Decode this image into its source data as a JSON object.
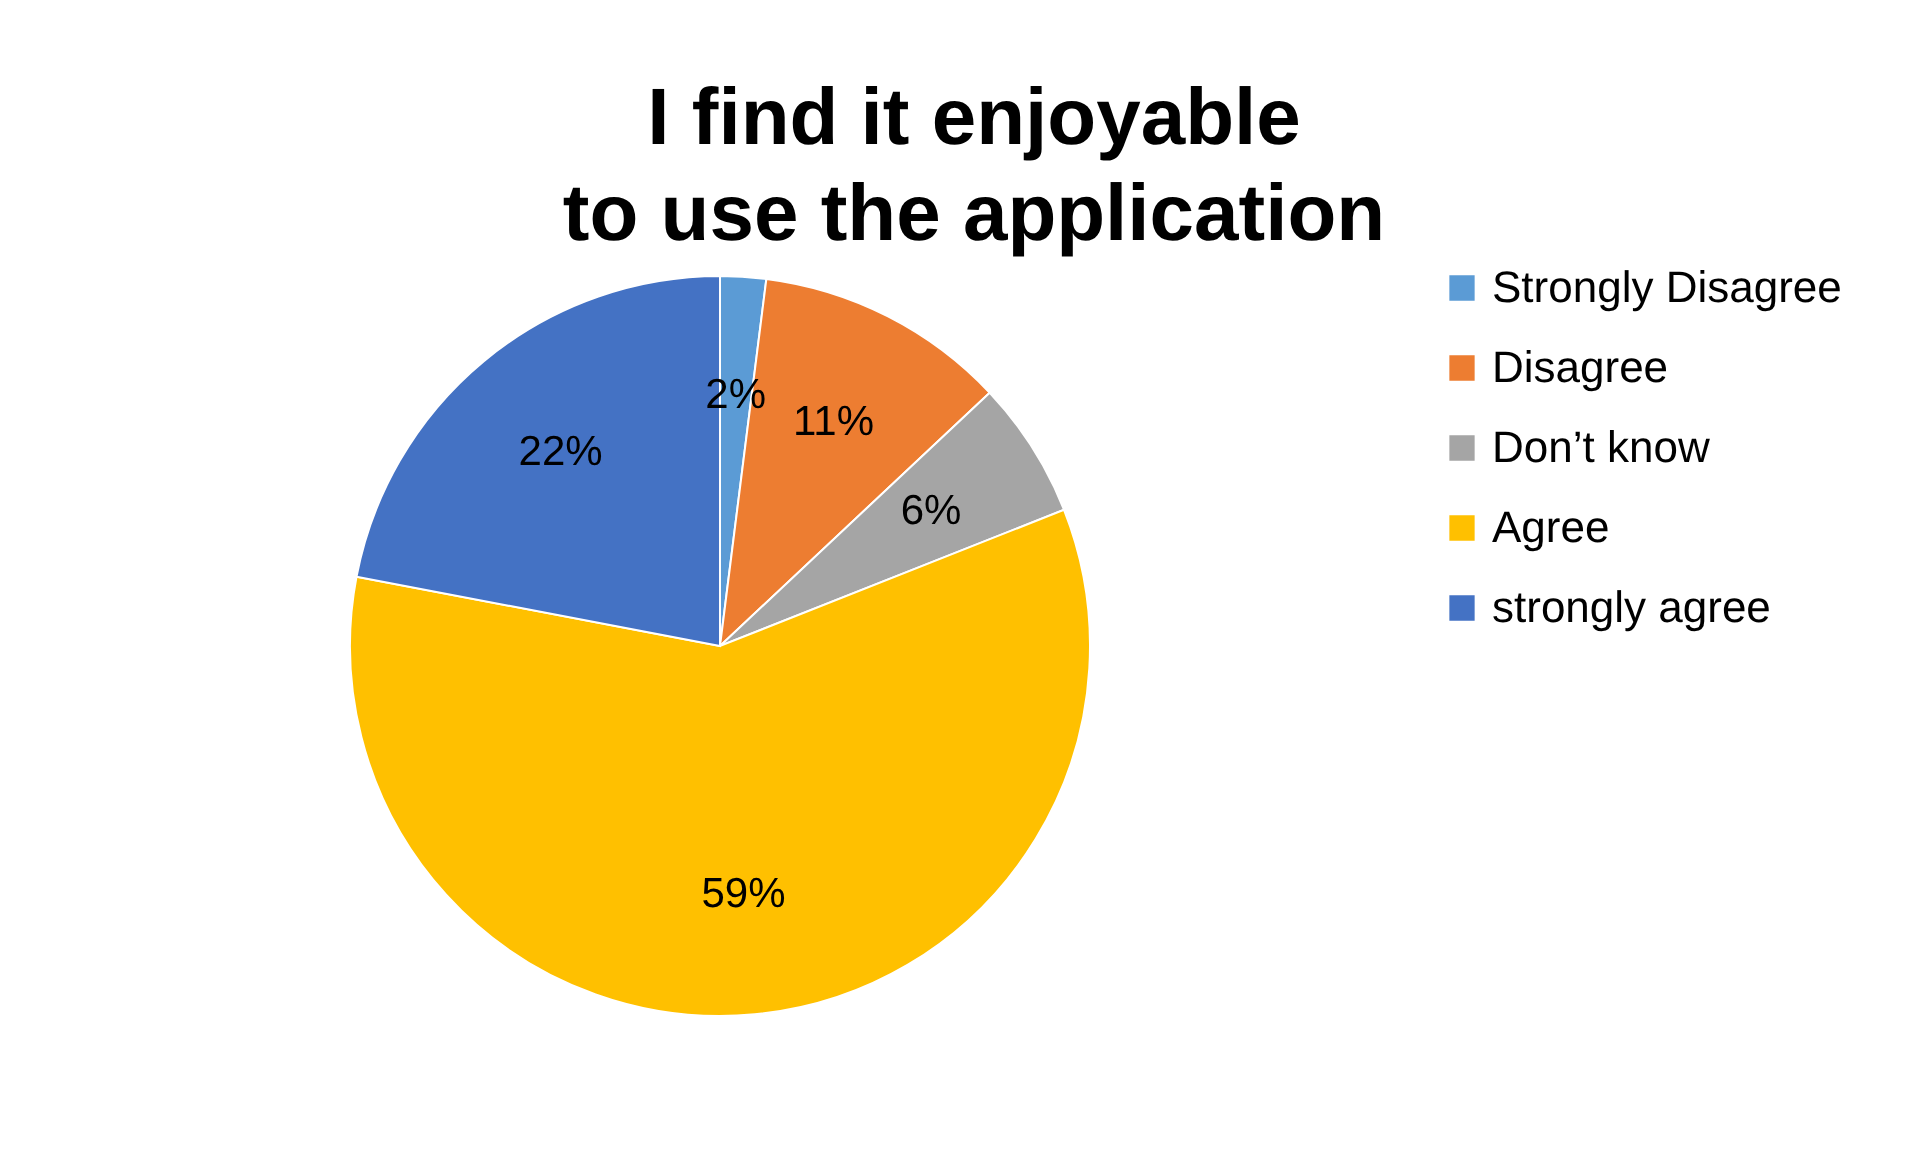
{
  "chart_data": {
    "type": "pie",
    "title": "I find it enjoyable to use the application",
    "categories": [
      "Strongly Disagree",
      "Disagree",
      "Don’t know",
      "Agree",
      "strongly agree"
    ],
    "values": [
      2,
      11,
      6,
      59,
      22
    ],
    "value_labels": [
      "2%",
      "11%",
      "6%",
      "59%",
      "22%"
    ],
    "colors": [
      "#5b9bd5",
      "#ed7d31",
      "#a5a5a5",
      "#ffc000",
      "#4472c4"
    ],
    "legend": "right"
  }
}
